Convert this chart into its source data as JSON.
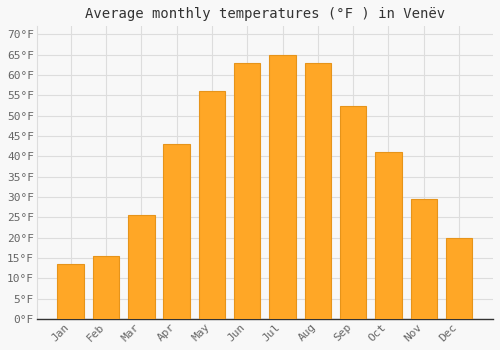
{
  "title": "Average monthly temperatures (°F ) in Venëv",
  "months": [
    "Jan",
    "Feb",
    "Mar",
    "Apr",
    "May",
    "Jun",
    "Jul",
    "Aug",
    "Sep",
    "Oct",
    "Nov",
    "Dec"
  ],
  "values": [
    13.5,
    15.5,
    25.5,
    43,
    56,
    63,
    65,
    63,
    52.5,
    41,
    29.5,
    20
  ],
  "bar_color": "#FFA726",
  "bar_edge_color": "#E6941A",
  "background_color": "#F8F8F8",
  "plot_bg_color": "#F8F8F8",
  "grid_color": "#DDDDDD",
  "ytick_labels": [
    "0°F",
    "5°F",
    "10°F",
    "15°F",
    "20°F",
    "25°F",
    "30°F",
    "35°F",
    "40°F",
    "45°F",
    "50°F",
    "55°F",
    "60°F",
    "65°F",
    "70°F"
  ],
  "ytick_values": [
    0,
    5,
    10,
    15,
    20,
    25,
    30,
    35,
    40,
    45,
    50,
    55,
    60,
    65,
    70
  ],
  "ylim": [
    0,
    72
  ],
  "title_fontsize": 10,
  "tick_fontsize": 8,
  "bar_width": 0.75,
  "text_color": "#666666"
}
